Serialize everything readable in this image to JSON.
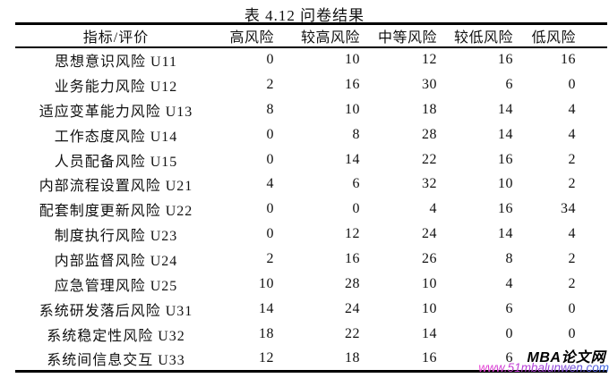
{
  "title": "表 4.12 问卷结果",
  "table": {
    "headers": [
      "指标/评价",
      "高风险",
      "较高风险",
      "中等风险",
      "较低风险",
      "低风险"
    ],
    "rows": [
      {
        "label": "思想意识风险 U11",
        "values": [
          "0",
          "10",
          "12",
          "16",
          "16"
        ]
      },
      {
        "label": "业务能力风险 U12",
        "values": [
          "2",
          "16",
          "30",
          "6",
          "0"
        ]
      },
      {
        "label": "适应变革能力风险 U13",
        "values": [
          "8",
          "10",
          "18",
          "14",
          "4"
        ]
      },
      {
        "label": "工作态度风险 U14",
        "values": [
          "0",
          "8",
          "28",
          "14",
          "4"
        ]
      },
      {
        "label": "人员配备风险 U15",
        "values": [
          "0",
          "14",
          "22",
          "16",
          "2"
        ]
      },
      {
        "label": "内部流程设置风险 U21",
        "values": [
          "4",
          "6",
          "32",
          "10",
          "2"
        ]
      },
      {
        "label": "配套制度更新风险 U22",
        "values": [
          "0",
          "0",
          "4",
          "16",
          "34"
        ]
      },
      {
        "label": "制度执行风险 U23",
        "values": [
          "0",
          "12",
          "24",
          "14",
          "4"
        ]
      },
      {
        "label": "内部监督风险 U24",
        "values": [
          "2",
          "16",
          "26",
          "8",
          "2"
        ]
      },
      {
        "label": "应急管理风险 U25",
        "values": [
          "10",
          "28",
          "10",
          "4",
          "2"
        ]
      },
      {
        "label": "系统研发落后风险 U31",
        "values": [
          "14",
          "24",
          "10",
          "6",
          "0"
        ]
      },
      {
        "label": "系统稳定性风险 U32",
        "values": [
          "18",
          "22",
          "14",
          "0",
          "0"
        ]
      },
      {
        "label": "系统间信息交互 U33",
        "values": [
          "12",
          "18",
          "16",
          "6",
          ""
        ]
      }
    ]
  },
  "chart_data": {
    "type": "table",
    "title": "表 4.12 问卷结果",
    "columns": [
      "指标/评价",
      "高风险",
      "较高风险",
      "中等风险",
      "较低风险",
      "低风险"
    ],
    "rows": [
      [
        "思想意识风险 U11",
        0,
        10,
        12,
        16,
        16
      ],
      [
        "业务能力风险 U12",
        2,
        16,
        30,
        6,
        0
      ],
      [
        "适应变革能力风险 U13",
        8,
        10,
        18,
        14,
        4
      ],
      [
        "工作态度风险 U14",
        0,
        8,
        28,
        14,
        4
      ],
      [
        "人员配备风险 U15",
        0,
        14,
        22,
        16,
        2
      ],
      [
        "内部流程设置风险 U21",
        4,
        6,
        32,
        10,
        2
      ],
      [
        "配套制度更新风险 U22",
        0,
        0,
        4,
        16,
        34
      ],
      [
        "制度执行风险 U23",
        0,
        12,
        24,
        14,
        4
      ],
      [
        "内部监督风险 U24",
        2,
        16,
        26,
        8,
        2
      ],
      [
        "应急管理风险 U25",
        10,
        28,
        10,
        4,
        2
      ],
      [
        "系统研发落后风险 U31",
        14,
        24,
        10,
        6,
        0
      ],
      [
        "系统稳定性风险 U32",
        18,
        22,
        14,
        0,
        0
      ],
      [
        "系统间信息交互 U33",
        12,
        18,
        16,
        6,
        null
      ]
    ],
    "note_last_cell": "obscured by watermark"
  },
  "watermark": {
    "name": "MBA论文网",
    "url": "www.51mbalunwen.com",
    "name_color": "#000000",
    "url_gradient": [
      "#e93bd2",
      "#a43fd8",
      "#3b6ae0"
    ]
  }
}
